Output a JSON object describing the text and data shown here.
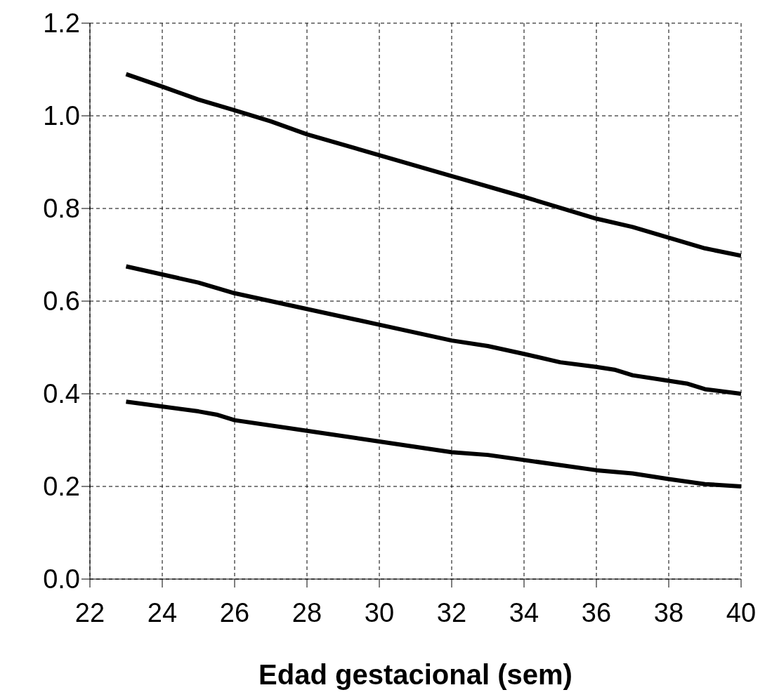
{
  "chart_data": {
    "type": "line",
    "xlabel": "Edad gestacional (sem)",
    "xlim": [
      22,
      40
    ],
    "xticks": [
      22,
      24,
      26,
      28,
      30,
      32,
      34,
      36,
      38,
      40
    ],
    "ylim": [
      0,
      1.2
    ],
    "yticks": [
      {
        "value": 0,
        "label": "0.0"
      },
      {
        "value": 0.2,
        "label": "0.2"
      },
      {
        "value": 0.4,
        "label": "0.4"
      },
      {
        "value": 0.6,
        "label": "0.6"
      },
      {
        "value": 0.8,
        "label": "0.8"
      },
      {
        "value": 1,
        "label": "1.0"
      },
      {
        "value": 1.2,
        "label": "1.2"
      }
    ],
    "grid": true,
    "marker": "none",
    "line_style": "solid",
    "series": [
      {
        "color": "#000000",
        "x": [
          23,
          24,
          25,
          26,
          27,
          28,
          30,
          32,
          34,
          36,
          37,
          38,
          39,
          40
        ],
        "values": [
          1.09,
          1.063,
          1.035,
          1.012,
          0.988,
          0.96,
          0.915,
          0.87,
          0.825,
          0.778,
          0.76,
          0.737,
          0.714,
          0.698
        ]
      },
      {
        "color": "#000000",
        "x": [
          23,
          25,
          26,
          28,
          30,
          32,
          33,
          34,
          35,
          36,
          36.5,
          37,
          38,
          38.5,
          39,
          40
        ],
        "values": [
          0.675,
          0.64,
          0.617,
          0.583,
          0.549,
          0.515,
          0.503,
          0.486,
          0.468,
          0.458,
          0.452,
          0.44,
          0.428,
          0.422,
          0.41,
          0.4
        ]
      },
      {
        "color": "#000000",
        "x": [
          23,
          25,
          25.5,
          26,
          28,
          30,
          32,
          33,
          34,
          36,
          37,
          38,
          39,
          40
        ],
        "values": [
          0.383,
          0.362,
          0.355,
          0.343,
          0.32,
          0.297,
          0.274,
          0.268,
          0.257,
          0.235,
          0.228,
          0.216,
          0.205,
          0.2
        ]
      }
    ]
  }
}
